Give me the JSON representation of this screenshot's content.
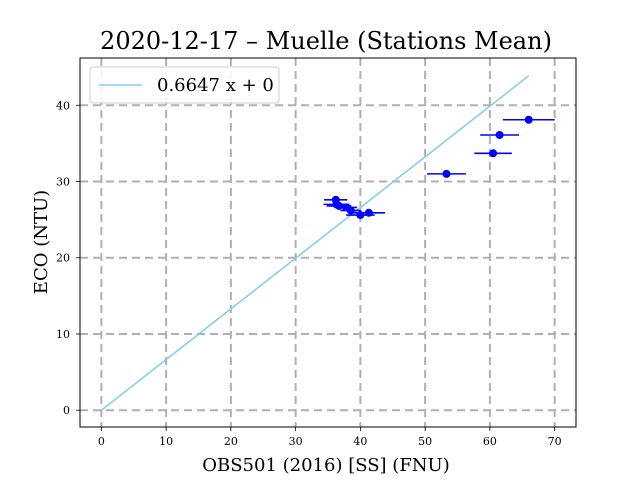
{
  "chart_data": {
    "type": "scatter",
    "title": "2020-12-17 – Muelle (Stations Mean)",
    "xlabel": "OBS501 (2016) [SS] (FNU)",
    "ylabel": "ECO (NTU)",
    "xlim": [
      -3.3,
      73.3
    ],
    "ylim": [
      -2.2,
      46.2
    ],
    "xticks": [
      0,
      10,
      20,
      30,
      40,
      50,
      60,
      70
    ],
    "yticks": [
      0,
      10,
      20,
      30,
      40
    ],
    "grid": true,
    "legend_position": "top-left",
    "fit_line": {
      "label": "0.6647 x + 0",
      "slope": 0.6647,
      "intercept": 0,
      "x_range": [
        0,
        66
      ],
      "color": "#87ceeb"
    },
    "series": [
      {
        "color": "#0000ff",
        "points": [
          {
            "x": 36.2,
            "y": 27.6,
            "xerr": 1.8
          },
          {
            "x": 36.3,
            "y": 27.0,
            "xerr": 2.0
          },
          {
            "x": 36.7,
            "y": 26.8,
            "xerr": 1.9
          },
          {
            "x": 37.8,
            "y": 26.6,
            "xerr": 1.7
          },
          {
            "x": 38.5,
            "y": 26.2,
            "xerr": 1.6
          },
          {
            "x": 40.0,
            "y": 25.6,
            "xerr": 2.2
          },
          {
            "x": 41.3,
            "y": 25.9,
            "xerr": 2.5
          },
          {
            "x": 53.3,
            "y": 31.0,
            "xerr": 3.0
          },
          {
            "x": 60.5,
            "y": 33.7,
            "xerr": 2.9
          },
          {
            "x": 61.5,
            "y": 36.1,
            "xerr": 3.0
          },
          {
            "x": 66.0,
            "y": 38.1,
            "xerr": 4.0
          }
        ]
      }
    ]
  }
}
